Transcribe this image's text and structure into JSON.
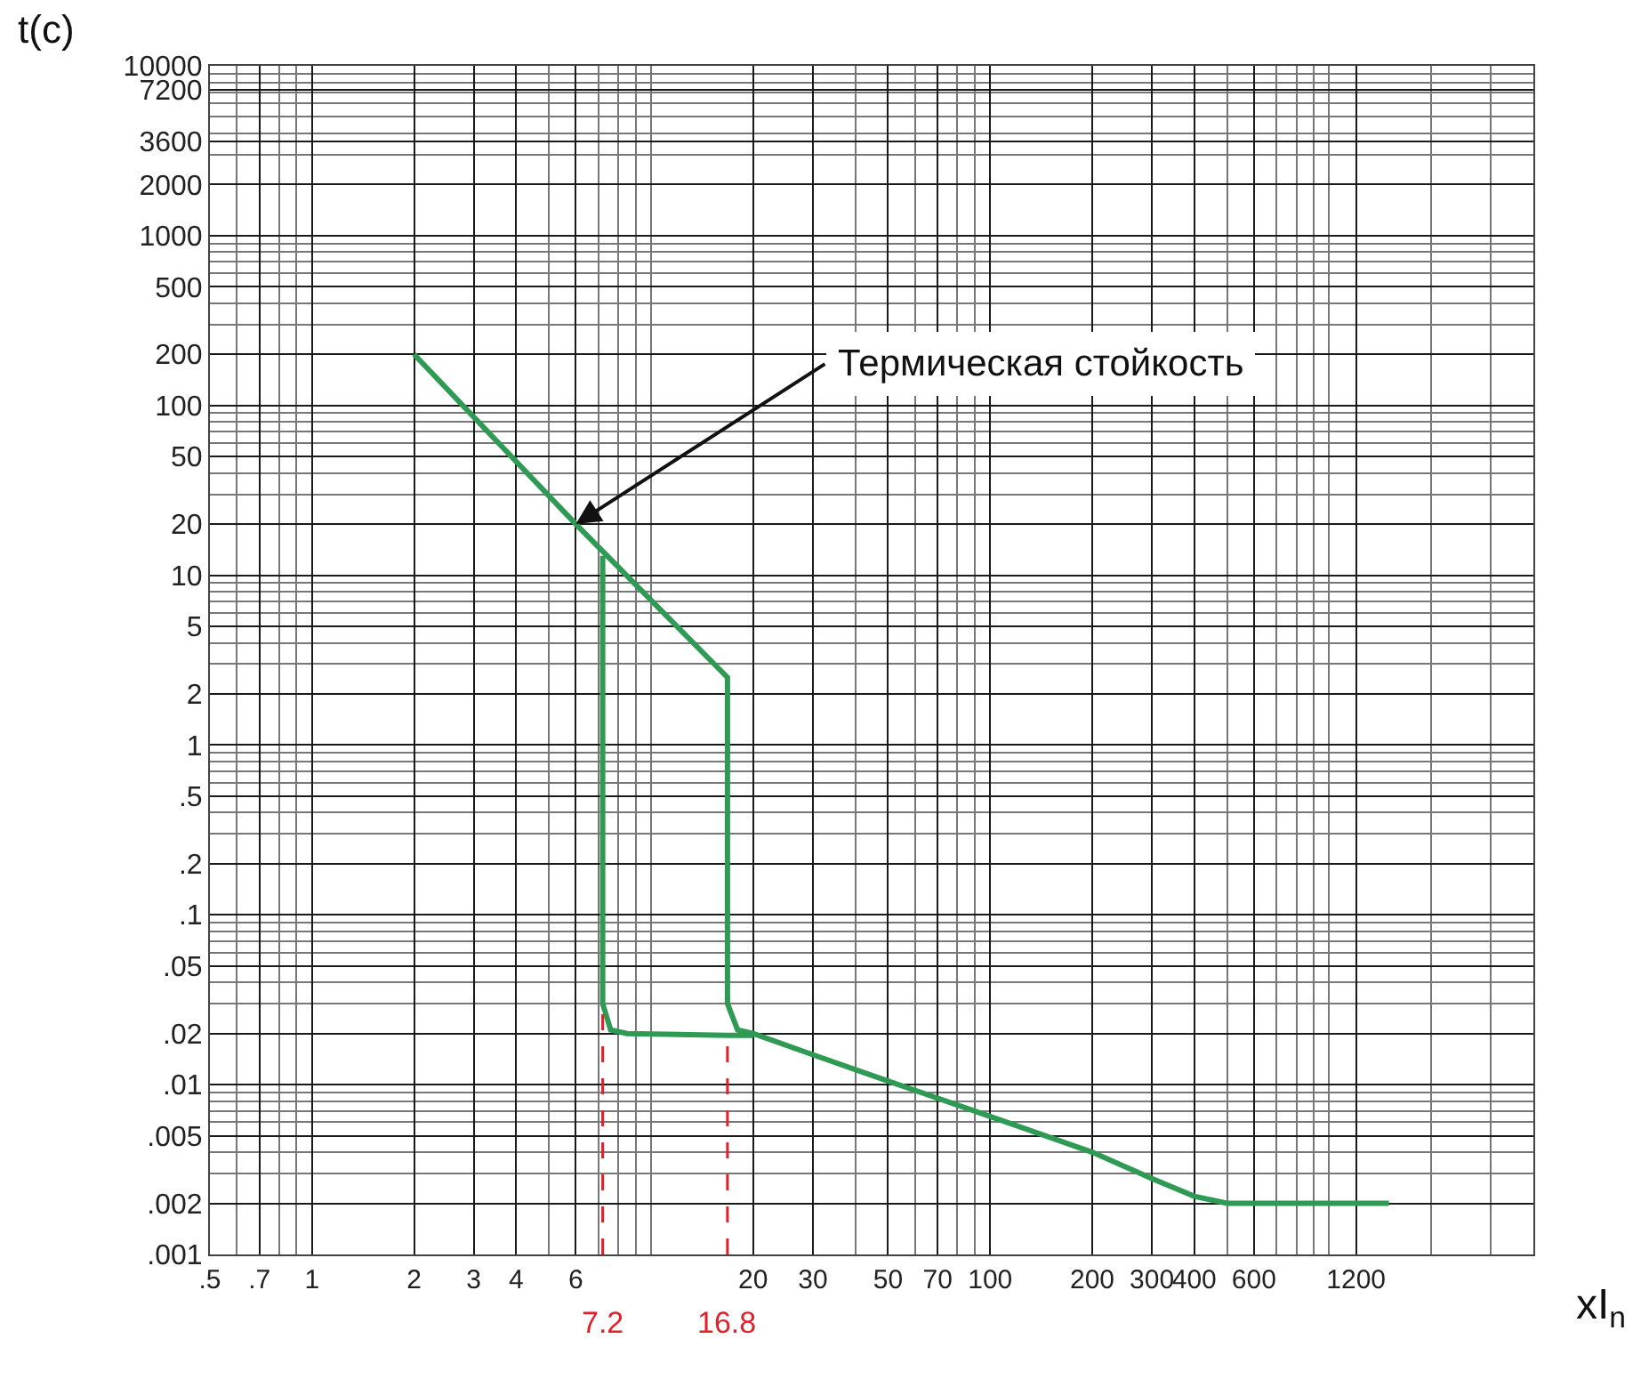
{
  "chart_data": {
    "type": "line",
    "xlabel": "xI$_{n}$",
    "ylabel": "t(c)",
    "log": "xy",
    "grid": true,
    "marker": "none",
    "line_style": "solid",
    "series": [
      {
        "color": "#2e9a53",
        "x": [
          2,
          6,
          16.8,
          16.8,
          18,
          20,
          30,
          50,
          100,
          200,
          300,
          400,
          500,
          1500
        ],
        "values": [
          200,
          20,
          2.5,
          0.03,
          0.021,
          0.02,
          0.015,
          0.0105,
          0.0065,
          0.004,
          0.0028,
          0.0022,
          0.002,
          0.002
        ]
      },
      {
        "color": "#2e9a53",
        "x": [
          7.2,
          7.2,
          7.6,
          8.5,
          16.8,
          20
        ],
        "values": [
          13,
          0.03,
          0.021,
          0.02,
          0.0195,
          0.0195
        ]
      }
    ],
    "xlim": [
      0.5,
      4000
    ],
    "ylim": [
      0.001,
      10000
    ],
    "xticks": [
      {
        "value": 0.5,
        "label": ".5"
      },
      {
        "value": 0.7,
        "label": ".7"
      },
      1,
      2,
      3,
      4,
      6,
      20,
      30,
      50,
      70,
      100,
      200,
      300,
      400,
      600,
      1200
    ],
    "yticks": [
      {
        "value": 0.001,
        "label": ".001"
      },
      {
        "value": 0.002,
        "label": ".002"
      },
      {
        "value": 0.005,
        "label": ".005"
      },
      {
        "value": 0.01,
        "label": ".01"
      },
      {
        "value": 0.02,
        "label": ".02"
      },
      {
        "value": 0.05,
        "label": ".05"
      },
      {
        "value": 0.1,
        "label": ".1"
      },
      {
        "value": 0.2,
        "label": ".2"
      },
      {
        "value": 0.5,
        "label": ".5"
      },
      1,
      2,
      5,
      10,
      20,
      50,
      100,
      200,
      500,
      1000,
      2000,
      3600,
      7200,
      10000
    ],
    "ref_lines": [
      {
        "axis": "x",
        "value": 7.2,
        "label": "7.2",
        "color": "#e0202a",
        "line_style": "dashed"
      },
      {
        "axis": "x",
        "value": 16.8,
        "label": "16.8",
        "color": "#e0202a",
        "line_style": "dashed"
      }
    ],
    "annotations": [
      {
        "text": "Термическая стойкость",
        "x": 6,
        "y": 20
      }
    ]
  }
}
